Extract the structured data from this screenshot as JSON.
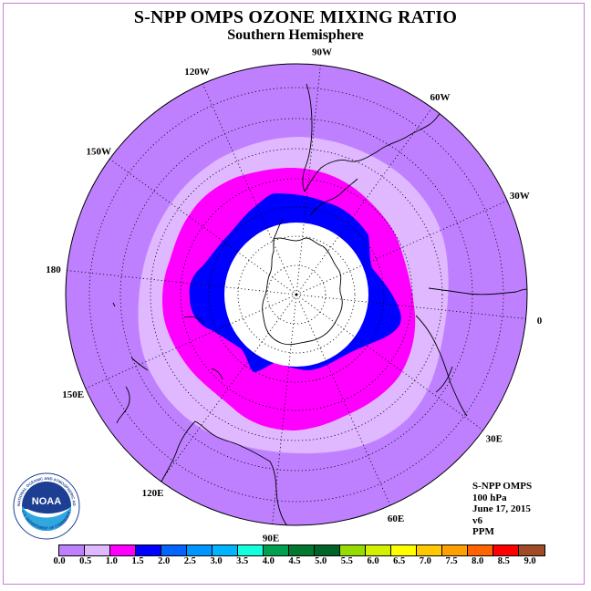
{
  "header": {
    "title": "S-NPP OMPS OZONE MIXING RATIO",
    "subtitle": "Southern Hemisphere"
  },
  "map": {
    "projection": "south-polar-stereographic",
    "pole": "south",
    "graticule": "dotted",
    "longitude_labels": [
      "0",
      "30E",
      "60E",
      "90E",
      "120E",
      "150E",
      "180",
      "150W",
      "120W",
      "90W",
      "60W",
      "30W"
    ],
    "background_color": "#bf80ff",
    "polar_cap_color": "#ffffff",
    "contour_colors": {
      "0.5-1.0": "#dfb8ff",
      "1.0-1.5": "#ff00ff",
      "1.5-2.0": "#0000ff"
    }
  },
  "info": {
    "instrument": "S-NPP OMPS",
    "level": "100 hPa",
    "date": "June 17, 2015",
    "version": "v6",
    "units": "PPM"
  },
  "logo": {
    "text": "NOAA",
    "ring_text": "NATIONAL OCEANIC AND ATMOSPHERIC ADMINISTRATION",
    "bottom_text": "U.S. DEPARTMENT OF COMMERCE"
  },
  "colorbar": {
    "ticks": [
      "0.0",
      "0.5",
      "1.0",
      "1.5",
      "2.0",
      "2.5",
      "3.0",
      "3.5",
      "4.0",
      "4.5",
      "5.0",
      "5.5",
      "6.0",
      "6.5",
      "7.0",
      "7.5",
      "8.0",
      "8.5",
      "9.0"
    ],
    "colors": [
      "#bf80ff",
      "#dfb8ff",
      "#ff00ff",
      "#0000ff",
      "#0064ff",
      "#0096ff",
      "#00b4ff",
      "#14ffdc",
      "#00a050",
      "#00782d",
      "#006428",
      "#96dc00",
      "#d2f000",
      "#ffff00",
      "#ffc800",
      "#ffa000",
      "#ff6400",
      "#ff0000",
      "#a04b23"
    ]
  }
}
